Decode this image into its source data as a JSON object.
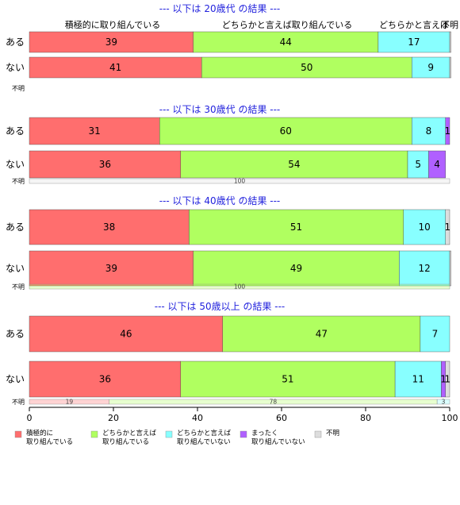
{
  "chart_data": {
    "type": "bar",
    "orientation": "horizontal",
    "stacked": true,
    "xlim": [
      0,
      100
    ],
    "xticks": [
      "0",
      "20",
      "40",
      "60",
      "80",
      "100"
    ],
    "colors": [
      "#ff6e6e",
      "#b0ff60",
      "#88ffff",
      "#b060ff",
      "#dddddd"
    ],
    "legend": {
      "position": "bottom",
      "items": [
        {
          "line1": "積極的に",
          "line2": "取り組んでいる"
        },
        {
          "line1": "どちらかと言えば",
          "line2": "取り組んでいる"
        },
        {
          "line1": "どちらかと言えば",
          "line2": "取り組んでいない"
        },
        {
          "line1": "まったく",
          "line2": "取り組んでいない"
        },
        {
          "line1": "不明",
          "line2": ""
        }
      ]
    },
    "top_labels": [
      "積極的に取り組んでいる",
      "どちらかと言えば取り組んでいる",
      "どちらかと言えば",
      "不明"
    ],
    "top_label_truncated": "どちらかと言えば取り組んでいない",
    "panels": [
      {
        "title": "--- 以下は 20歳代 の結果 ---",
        "rows": [
          {
            "label": "ある",
            "values": [
              39,
              44,
              17,
              0,
              0.3
            ]
          },
          {
            "label": "ない",
            "values": [
              41,
              50,
              9,
              0,
              0.3
            ]
          }
        ],
        "unknown": {
          "label": "不明",
          "values": []
        }
      },
      {
        "title": "--- 以下は 30歳代 の結果 ---",
        "rows": [
          {
            "label": "ある",
            "values": [
              31,
              60,
              8,
              1,
              0
            ]
          },
          {
            "label": "ない",
            "values": [
              36,
              54,
              5,
              4,
              0
            ]
          }
        ],
        "unknown": {
          "label": "不明",
          "values": [
            0,
            0,
            0,
            0,
            100
          ]
        }
      },
      {
        "title": "--- 以下は 40歳代 の結果 ---",
        "rows": [
          {
            "label": "ある",
            "values": [
              38,
              51,
              10,
              0,
              1
            ]
          },
          {
            "label": "ない",
            "values": [
              39,
              49,
              12,
              0,
              0.3
            ]
          }
        ],
        "unknown": {
          "label": "不明",
          "values": [
            0,
            100,
            0,
            0,
            0
          ]
        }
      },
      {
        "title": "--- 以下は 50歳以上 の結果 ---",
        "rows": [
          {
            "label": "ある",
            "values": [
              46,
              47,
              7,
              0,
              0
            ]
          },
          {
            "label": "ない",
            "values": [
              36,
              51,
              11,
              1,
              1
            ]
          }
        ],
        "unknown": {
          "label": "不明",
          "values": [
            19,
            78,
            3,
            0,
            0
          ]
        }
      }
    ]
  }
}
